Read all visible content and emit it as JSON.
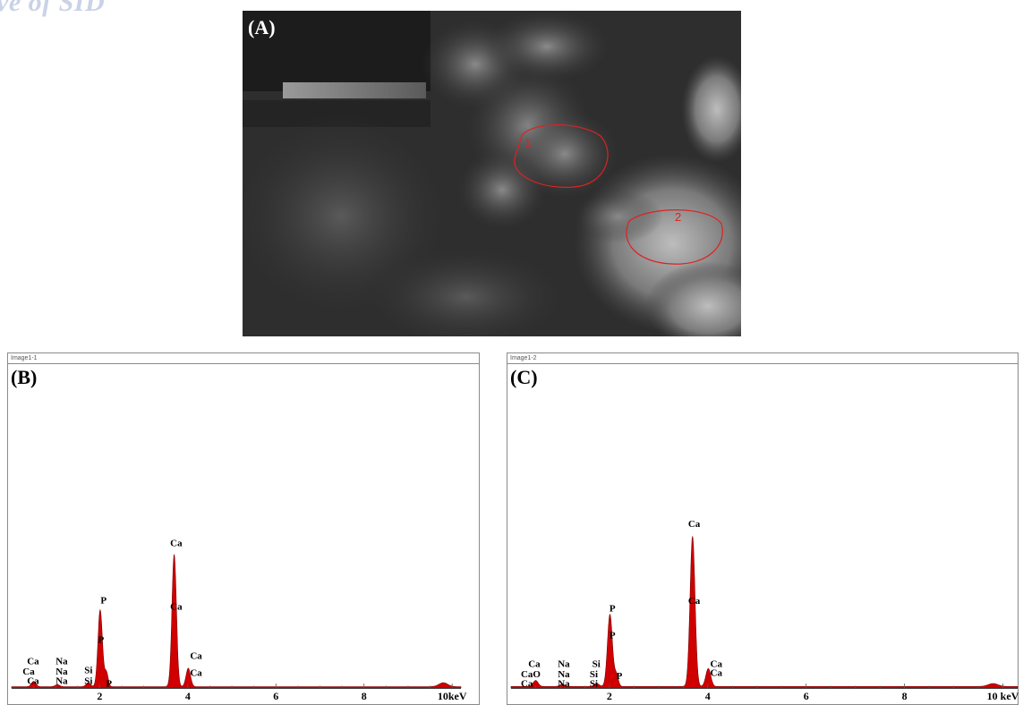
{
  "watermark": "ve of SID",
  "panel_a": {
    "label": "(A)",
    "region_labels": [
      "1",
      "2"
    ]
  },
  "chart_data": [
    {
      "type": "line",
      "panel_label": "(B)",
      "header": "Image1-1",
      "xlabel": "",
      "ylabel": "",
      "xlim": [
        0,
        10.2
      ],
      "ylim": [
        0,
        100
      ],
      "x_ticks": [
        2,
        4,
        6,
        8,
        10
      ],
      "x_tick_labels": [
        "2",
        "4",
        "6",
        "8",
        "10keV"
      ],
      "series": [
        {
          "color": "#d00000",
          "peaks": [
            {
              "x": 0.5,
              "y": 4,
              "w": 0.05
            },
            {
              "x": 1.04,
              "y": 1.5,
              "w": 0.05
            },
            {
              "x": 1.74,
              "y": 3,
              "w": 0.05
            },
            {
              "x": 2.01,
              "y": 58,
              "w": 0.05
            },
            {
              "x": 2.15,
              "y": 11,
              "w": 0.04
            },
            {
              "x": 3.69,
              "y": 100,
              "w": 0.05
            },
            {
              "x": 4.01,
              "y": 14,
              "w": 0.05
            },
            {
              "x": 9.8,
              "y": 3,
              "w": 0.1
            }
          ],
          "baseline": 1
        }
      ],
      "peak_labels": [
        {
          "text": "Ca",
          "x": 0.35,
          "y": 18
        },
        {
          "text": "Ca",
          "x": 0.25,
          "y": 10
        },
        {
          "text": "Ca",
          "x": 0.35,
          "y": 3
        },
        {
          "text": "Na",
          "x": 1.0,
          "y": 18
        },
        {
          "text": "Na",
          "x": 1.0,
          "y": 10
        },
        {
          "text": "Na",
          "x": 1.0,
          "y": 3
        },
        {
          "text": "Si",
          "x": 1.65,
          "y": 11
        },
        {
          "text": "Si",
          "x": 1.65,
          "y": 3
        },
        {
          "text": "P",
          "x": 2.02,
          "y": 64
        },
        {
          "text": "P",
          "x": 1.96,
          "y": 34
        },
        {
          "text": "P",
          "x": 2.14,
          "y": 1
        },
        {
          "text": "Ca",
          "x": 3.6,
          "y": 107
        },
        {
          "text": "Ca",
          "x": 3.6,
          "y": 59
        },
        {
          "text": "Ca",
          "x": 4.05,
          "y": 22
        },
        {
          "text": "Ca",
          "x": 4.05,
          "y": 9
        }
      ]
    },
    {
      "type": "line",
      "panel_label": "(C)",
      "header": "Image1-2",
      "xlabel": "",
      "ylabel": "",
      "xlim": [
        0,
        10.3
      ],
      "ylim": [
        0,
        100
      ],
      "x_ticks": [
        2,
        4,
        6,
        8,
        10
      ],
      "x_tick_labels": [
        "2",
        "4",
        "6",
        "8",
        "10 keV"
      ],
      "series": [
        {
          "color": "#d00000",
          "peaks": [
            {
              "x": 0.5,
              "y": 4,
              "w": 0.05
            },
            {
              "x": 1.04,
              "y": 1.5,
              "w": 0.05
            },
            {
              "x": 1.74,
              "y": 2,
              "w": 0.05
            },
            {
              "x": 2.01,
              "y": 48,
              "w": 0.05
            },
            {
              "x": 2.14,
              "y": 8,
              "w": 0.04
            },
            {
              "x": 3.69,
              "y": 100,
              "w": 0.05
            },
            {
              "x": 4.01,
              "y": 12,
              "w": 0.05
            },
            {
              "x": 9.8,
              "y": 2,
              "w": 0.1
            }
          ],
          "baseline": 1
        }
      ],
      "peak_labels": [
        {
          "text": "Ca",
          "x": 0.35,
          "y": 14
        },
        {
          "text": "CaO",
          "x": 0.2,
          "y": 7
        },
        {
          "text": "Ca",
          "x": 0.2,
          "y": 1
        },
        {
          "text": "Na",
          "x": 0.95,
          "y": 14
        },
        {
          "text": "Na",
          "x": 0.95,
          "y": 7
        },
        {
          "text": "Na",
          "x": 0.95,
          "y": 1
        },
        {
          "text": "Si",
          "x": 1.65,
          "y": 14
        },
        {
          "text": "Si",
          "x": 1.6,
          "y": 7
        },
        {
          "text": "Si",
          "x": 1.6,
          "y": 1
        },
        {
          "text": "P",
          "x": 2.0,
          "y": 51
        },
        {
          "text": "P",
          "x": 2.0,
          "y": 33
        },
        {
          "text": "P",
          "x": 2.14,
          "y": 6
        },
        {
          "text": "Ca",
          "x": 3.6,
          "y": 107
        },
        {
          "text": "Ca",
          "x": 3.6,
          "y": 56
        },
        {
          "text": "Ca",
          "x": 4.05,
          "y": 14
        },
        {
          "text": "Ca",
          "x": 4.05,
          "y": 8
        }
      ]
    }
  ]
}
